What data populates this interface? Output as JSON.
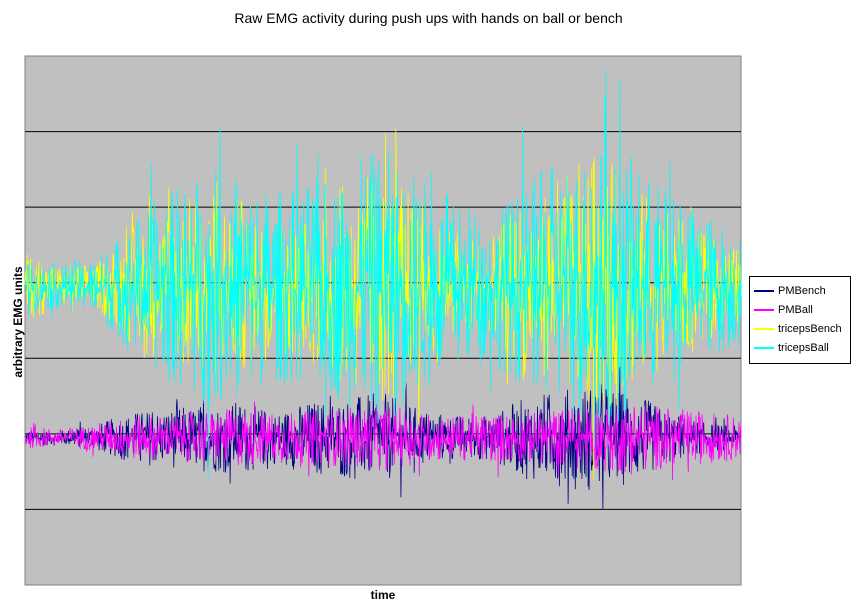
{
  "chart_data": {
    "type": "line",
    "title": "Raw EMG activity during push ups with hands on ball or bench",
    "xlabel": "time",
    "ylabel": "arbitrary EMG units",
    "grid": true,
    "legend_position": "right",
    "plot_background": "#c0c0c0",
    "y_gridlines": [
      1,
      2,
      3,
      4,
      5,
      6
    ],
    "ylim": [
      0,
      7
    ],
    "xlim": [
      0,
      1
    ],
    "series": [
      {
        "name": "PMBench",
        "color": "#000080",
        "baseline": 1.95,
        "x": [
          0,
          0.05,
          0.1,
          0.15,
          0.2,
          0.25,
          0.3,
          0.35,
          0.4,
          0.45,
          0.5,
          0.55,
          0.6,
          0.65,
          0.7,
          0.75,
          0.8,
          0.85,
          0.9,
          0.95,
          1.0
        ],
        "amplitude": [
          0.12,
          0.1,
          0.18,
          0.35,
          0.4,
          0.45,
          0.5,
          0.35,
          0.5,
          0.55,
          0.6,
          0.4,
          0.3,
          0.3,
          0.55,
          0.65,
          0.75,
          0.6,
          0.35,
          0.2,
          0.15
        ]
      },
      {
        "name": "PMBall",
        "color": "#ff00ff",
        "baseline": 1.95,
        "x": [
          0,
          0.05,
          0.1,
          0.15,
          0.2,
          0.25,
          0.3,
          0.35,
          0.4,
          0.45,
          0.5,
          0.55,
          0.6,
          0.65,
          0.7,
          0.75,
          0.8,
          0.85,
          0.9,
          0.95,
          1.0
        ],
        "amplitude": [
          0.15,
          0.12,
          0.2,
          0.3,
          0.3,
          0.35,
          0.4,
          0.35,
          0.35,
          0.4,
          0.45,
          0.35,
          0.3,
          0.35,
          0.35,
          0.4,
          0.45,
          0.5,
          0.4,
          0.35,
          0.3
        ]
      },
      {
        "name": "tricepsBench",
        "color": "#ffff00",
        "baseline": 3.95,
        "x": [
          0,
          0.05,
          0.1,
          0.15,
          0.2,
          0.25,
          0.3,
          0.35,
          0.4,
          0.45,
          0.5,
          0.55,
          0.6,
          0.65,
          0.7,
          0.75,
          0.8,
          0.85,
          0.9,
          0.95,
          1.0
        ],
        "amplitude": [
          0.45,
          0.3,
          0.3,
          0.8,
          1.1,
          1.3,
          1.2,
          0.9,
          1.0,
          1.4,
          1.6,
          1.2,
          0.8,
          0.6,
          1.3,
          1.5,
          1.8,
          1.4,
          1.0,
          0.7,
          0.5
        ]
      },
      {
        "name": "tricepsBall",
        "color": "#00ffff",
        "baseline": 3.95,
        "x": [
          0,
          0.05,
          0.1,
          0.15,
          0.2,
          0.25,
          0.3,
          0.35,
          0.4,
          0.45,
          0.5,
          0.55,
          0.6,
          0.65,
          0.7,
          0.75,
          0.8,
          0.85,
          0.9,
          0.95,
          1.0
        ],
        "amplitude": [
          0.35,
          0.3,
          0.4,
          0.9,
          1.3,
          1.6,
          1.5,
          1.3,
          1.4,
          1.6,
          1.9,
          1.5,
          1.2,
          1.0,
          1.4,
          1.7,
          2.0,
          1.7,
          1.3,
          1.0,
          0.8
        ]
      }
    ]
  }
}
